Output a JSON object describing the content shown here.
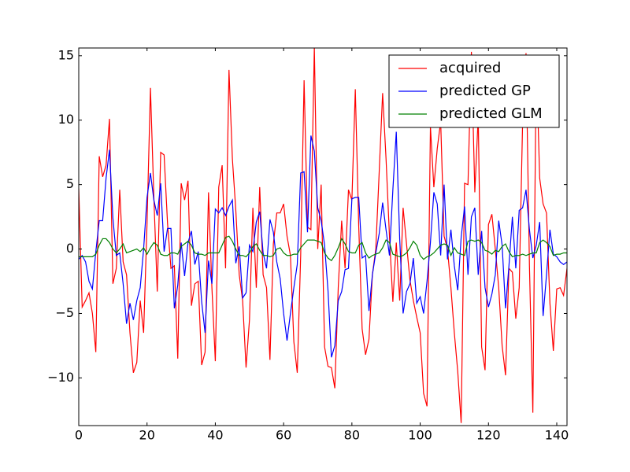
{
  "chart_data": {
    "type": "line",
    "x": [
      0,
      1,
      2,
      3,
      4,
      5,
      6,
      7,
      8,
      9,
      10,
      11,
      12,
      13,
      14,
      15,
      16,
      17,
      18,
      19,
      20,
      21,
      22,
      23,
      24,
      25,
      26,
      27,
      28,
      29,
      30,
      31,
      32,
      33,
      34,
      35,
      36,
      37,
      38,
      39,
      40,
      41,
      42,
      43,
      44,
      45,
      46,
      47,
      48,
      49,
      50,
      51,
      52,
      53,
      54,
      55,
      56,
      57,
      58,
      59,
      60,
      61,
      62,
      63,
      64,
      65,
      66,
      67,
      68,
      69,
      70,
      71,
      72,
      73,
      74,
      75,
      76,
      77,
      78,
      79,
      80,
      81,
      82,
      83,
      84,
      85,
      86,
      87,
      88,
      89,
      90,
      91,
      92,
      93,
      94,
      95,
      96,
      97,
      98,
      99,
      100,
      101,
      102,
      103,
      104,
      105,
      106,
      107,
      108,
      109,
      110,
      111,
      112,
      113,
      114,
      115,
      116,
      117,
      118,
      119,
      120,
      121,
      122,
      123,
      124,
      125,
      126,
      127,
      128,
      129,
      130,
      131,
      132,
      133,
      134,
      135,
      136,
      137,
      138,
      139,
      140,
      141,
      142,
      143
    ],
    "series": [
      {
        "name": "acquired",
        "color": "#ff0000",
        "values": [
          4.7,
          -4.5,
          -4,
          -3.4,
          -5,
          -8,
          7.2,
          5.6,
          6.5,
          10.1,
          -2.7,
          -1.5,
          4.6,
          -1,
          -2,
          -6.5,
          -9.6,
          -8.8,
          -4,
          -6.5,
          2,
          12.5,
          4,
          -3.3,
          7.5,
          7.3,
          2,
          -1.5,
          -1.3,
          -8.5,
          5.1,
          3.8,
          5.3,
          -4.4,
          -2.7,
          -2.5,
          -9,
          -8,
          4.4,
          -3,
          -8.7,
          4.8,
          6.5,
          -1.5,
          13.9,
          7,
          3,
          -2,
          -4,
          -9.2,
          -5.5,
          3.2,
          -3,
          4.8,
          -2,
          -3,
          -8.6,
          0.4,
          2.8,
          2.8,
          3.5,
          1,
          -0.5,
          -7.2,
          -9.6,
          -0.5,
          13.1,
          1.7,
          1.5,
          15.7,
          0,
          5,
          -7.6,
          -9.1,
          -9.2,
          -10.8,
          -3,
          2.2,
          -1.5,
          4.6,
          3.8,
          12.4,
          1.8,
          -6.2,
          -8.2,
          -7,
          -2,
          0,
          6,
          12.1,
          7,
          1,
          -4.1,
          0.5,
          -4,
          3.2,
          0.4,
          -2.4,
          -4,
          -5.3,
          -6.5,
          -11.2,
          -12.2,
          9.5,
          4.8,
          7.8,
          9.9,
          1,
          0,
          -3,
          -6.5,
          -9.5,
          -13.5,
          5.1,
          5,
          15.3,
          4.4,
          10.3,
          -7.6,
          -9.4,
          1.9,
          2.7,
          0,
          -3,
          -7.5,
          -9.8,
          -1.5,
          -1.8,
          -5.4,
          -3,
          9.9,
          15.2,
          -1.3,
          -12.7,
          14.9,
          5.5,
          3.5,
          2.8,
          -4.2,
          -7.9,
          -3.1,
          -3,
          -3.6,
          -1.5
        ]
      },
      {
        "name": "predicted GP",
        "color": "#0000ff",
        "values": [
          -0.8,
          -0.5,
          -1,
          -2.5,
          -3.1,
          -0.2,
          2.2,
          2.2,
          5.5,
          7.7,
          2.4,
          -0.5,
          -0.3,
          -2.7,
          -5.8,
          -4.2,
          -5.5,
          -4,
          -3,
          0,
          4,
          5.9,
          3.8,
          2.6,
          5.1,
          -0.2,
          1.6,
          1.6,
          -4.6,
          -2.8,
          0.5,
          -2.1,
          0.5,
          1.4,
          -1.2,
          -0.2,
          -4.1,
          -6.5,
          -0.9,
          -2.7,
          3.1,
          2.8,
          3.2,
          2.6,
          3.3,
          3.8,
          -1.1,
          0.2,
          -3.8,
          -3.4,
          0.3,
          -0.2,
          2.1,
          2.9,
          -0.3,
          -1.5,
          2.3,
          1.3,
          -1,
          -2.3,
          -5,
          -7.1,
          -5,
          -3,
          -1.2,
          5.9,
          6,
          1.3,
          8.8,
          7.6,
          3.2,
          2.2,
          0.3,
          -3.2,
          -8.4,
          -7.5,
          -4,
          -3.3,
          -1.6,
          -1.5,
          3.9,
          4,
          4,
          -0.7,
          -0.5,
          -4.8,
          -2,
          -0.3,
          1.2,
          3.6,
          1.5,
          -0.5,
          4.6,
          9.1,
          0.8,
          -5,
          -3.3,
          -2.7,
          -0.7,
          -4.2,
          -3.7,
          -5,
          -2.5,
          0.5,
          4.4,
          3.5,
          -0.5,
          5,
          -0.8,
          1.5,
          -1.3,
          -3.2,
          0.9,
          3.3,
          -2,
          2.5,
          3.2,
          -2,
          1.4,
          -3,
          -4.5,
          -3.5,
          -2,
          2.2,
          0.3,
          -4.6,
          -1.3,
          2.5,
          -1.5,
          3,
          3.2,
          4.6,
          1.5,
          -0.7,
          0.3,
          2.1,
          -5.2,
          -2,
          1.5,
          -0.4,
          -0.6,
          -1,
          -1.2,
          -1
        ]
      },
      {
        "name": "predicted GLM",
        "color": "#008000",
        "values": [
          -0.6,
          -0.6,
          -0.6,
          -0.6,
          -0.6,
          -0.4,
          0.3,
          0.8,
          0.8,
          0.5,
          0.0,
          -0.3,
          0.0,
          0.4,
          -0.3,
          -0.2,
          -0.1,
          0.0,
          -0.2,
          0.1,
          -0.4,
          0.1,
          0.5,
          0.3,
          -0.4,
          -0.5,
          -0.5,
          -0.3,
          -0.3,
          -0.4,
          0.2,
          0.4,
          0.6,
          0.3,
          -0.3,
          -0.4,
          -0.4,
          -0.5,
          -0.3,
          -0.3,
          -0.3,
          -0.3,
          0.3,
          0.9,
          1.0,
          0.6,
          0.0,
          -0.5,
          -0.5,
          -0.6,
          -0.3,
          0.2,
          0.4,
          -0.1,
          -0.5,
          -0.5,
          -0.6,
          -0.5,
          0.0,
          0.1,
          -0.3,
          -0.5,
          -0.5,
          -0.4,
          -0.4,
          0.1,
          0.4,
          0.7,
          0.7,
          0.7,
          0.6,
          0.5,
          -0.3,
          -0.7,
          -0.9,
          -0.5,
          0.1,
          0.8,
          0.4,
          -0.2,
          -0.3,
          -0.3,
          0.3,
          0.5,
          -0.3,
          -0.7,
          -0.5,
          -0.4,
          -0.3,
          0.1,
          0.7,
          0.5,
          -0.4,
          -0.5,
          -0.6,
          -0.5,
          -0.3,
          0.1,
          0.6,
          0.3,
          -0.5,
          -0.8,
          -0.6,
          -0.5,
          -0.3,
          0.0,
          0.3,
          0.4,
          0.3,
          -0.5,
          0.1,
          -0.3,
          -0.4,
          -0.5,
          0.6,
          0.7,
          0.6,
          0.7,
          0.5,
          -0.1,
          -0.2,
          -0.4,
          -0.1,
          -0.2,
          0.2,
          0.4,
          -0.2,
          -0.6,
          -0.5,
          -0.5,
          -0.4,
          -0.5,
          -0.4,
          -0.3,
          -0.3,
          0.5,
          0.7,
          0.5,
          0.2,
          -0.5,
          -0.4,
          -0.4,
          -0.3,
          -0.3
        ]
      }
    ],
    "xlim": [
      0,
      143
    ],
    "ylim": [
      -13.7,
      15.6
    ],
    "xticks": [
      0,
      20,
      40,
      60,
      80,
      100,
      120,
      140
    ],
    "yticks": [
      -10,
      -5,
      0,
      5,
      10,
      15
    ],
    "legend": "upper right"
  }
}
